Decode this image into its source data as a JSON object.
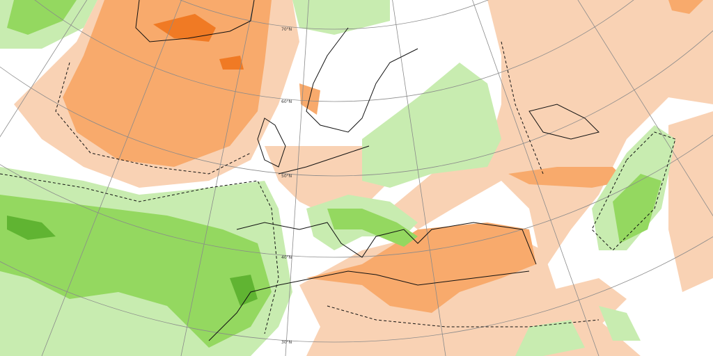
{
  "latitude_labels": [
    "70°N",
    "60°N",
    "50°N",
    "40°N",
    "30°N"
  ]
}
